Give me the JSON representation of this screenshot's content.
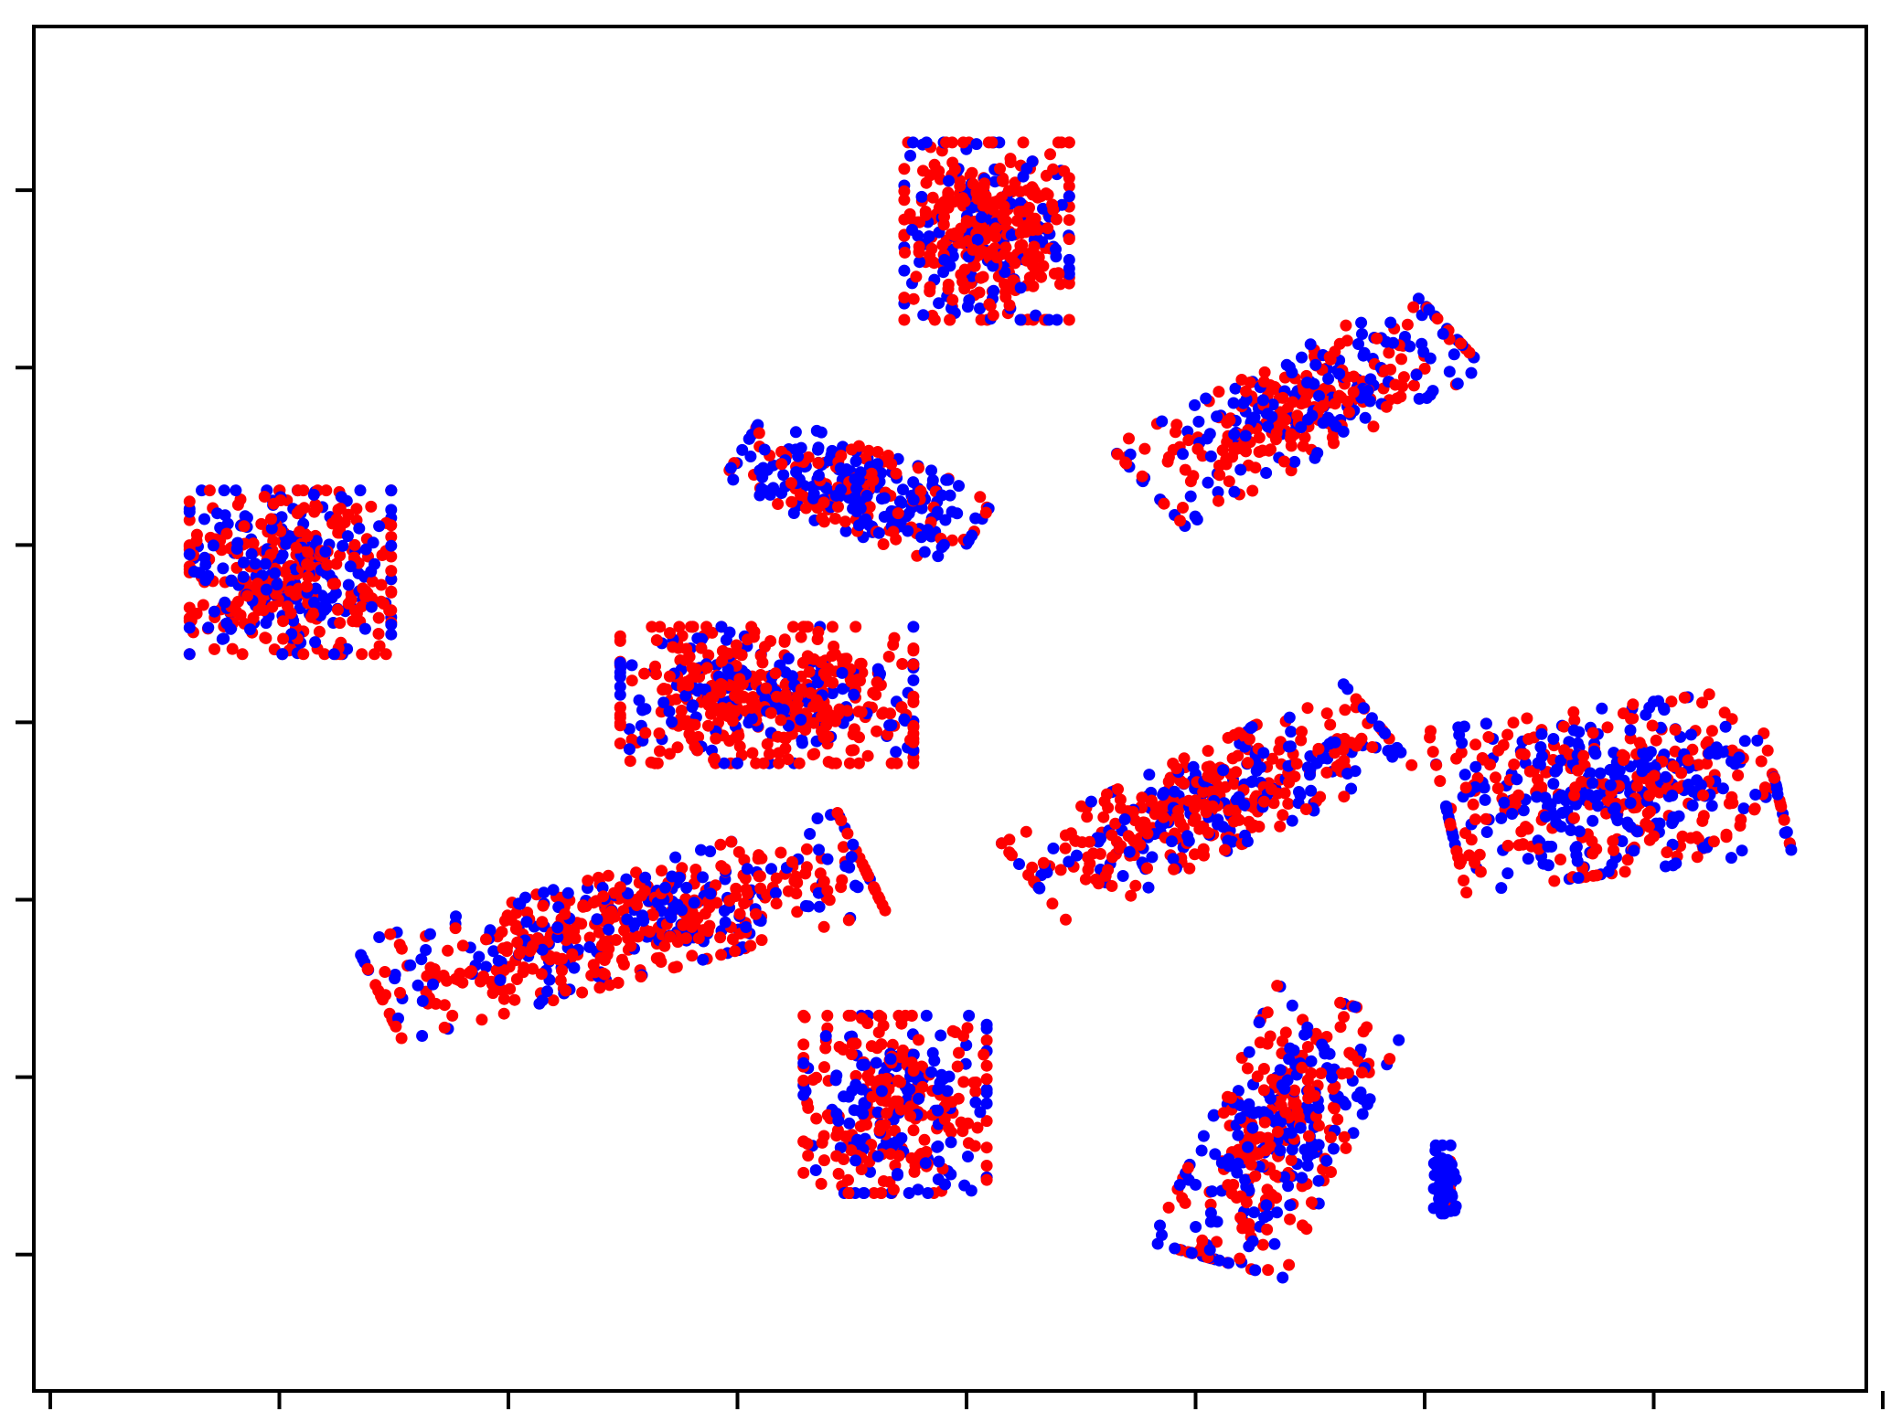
{
  "chart_data": {
    "type": "scatter",
    "title": "",
    "xlabel": "",
    "ylabel": "",
    "grid": false,
    "legend": "none",
    "tick_labels_shown": false,
    "xlim": [
      0,
      100
    ],
    "ylim": [
      0,
      100
    ],
    "x_ticks": [
      1,
      13.5,
      26,
      38.5,
      51,
      63.5,
      76,
      88.5,
      101
    ],
    "y_ticks": [
      10,
      23,
      36,
      49,
      62,
      75,
      88
    ],
    "colors": {
      "series_a": "#0000ff",
      "series_b": "#ff0000",
      "axes": "#000000",
      "background": "#ffffff"
    },
    "points_per_cluster_approx": [
      460,
      420,
      360,
      520,
      280,
      560,
      420,
      500,
      340,
      380,
      70
    ],
    "clusters": [
      {
        "cx": 14,
        "cy": 60,
        "sx": 5.5,
        "sy": 6,
        "tilt": 0,
        "blue_share": 0.45,
        "n": 460
      },
      {
        "cx": 52,
        "cy": 85,
        "sx": 4.5,
        "sy": 6.5,
        "tilt": 0,
        "blue_share": 0.3,
        "n": 420
      },
      {
        "cx": 69,
        "cy": 72,
        "sx": 10,
        "sy": 3.5,
        "tilt": 35,
        "blue_share": 0.45,
        "n": 360
      },
      {
        "cx": 40,
        "cy": 51,
        "sx": 8,
        "sy": 5,
        "tilt": 0,
        "blue_share": 0.3,
        "n": 520
      },
      {
        "cx": 45,
        "cy": 66,
        "sx": 7,
        "sy": 3,
        "tilt": -25,
        "blue_share": 0.65,
        "n": 280
      },
      {
        "cx": 32,
        "cy": 34,
        "sx": 14,
        "sy": 3.8,
        "tilt": 20,
        "blue_share": 0.4,
        "n": 560
      },
      {
        "cx": 64,
        "cy": 43,
        "sx": 11,
        "sy": 3.5,
        "tilt": 32,
        "blue_share": 0.4,
        "n": 420
      },
      {
        "cx": 86,
        "cy": 44,
        "sx": 9,
        "sy": 6,
        "tilt": 10,
        "blue_share": 0.5,
        "n": 500
      },
      {
        "cx": 47,
        "cy": 21,
        "sx": 5,
        "sy": 6.5,
        "tilt": 0,
        "blue_share": 0.4,
        "n": 340
      },
      {
        "cx": 68,
        "cy": 19,
        "sx": 3.8,
        "sy": 10,
        "tilt": -20,
        "blue_share": 0.45,
        "n": 380
      },
      {
        "cx": 77,
        "cy": 15.5,
        "sx": 0.6,
        "sy": 2.5,
        "tilt": 0,
        "blue_share": 0.95,
        "n": 70
      }
    ]
  }
}
